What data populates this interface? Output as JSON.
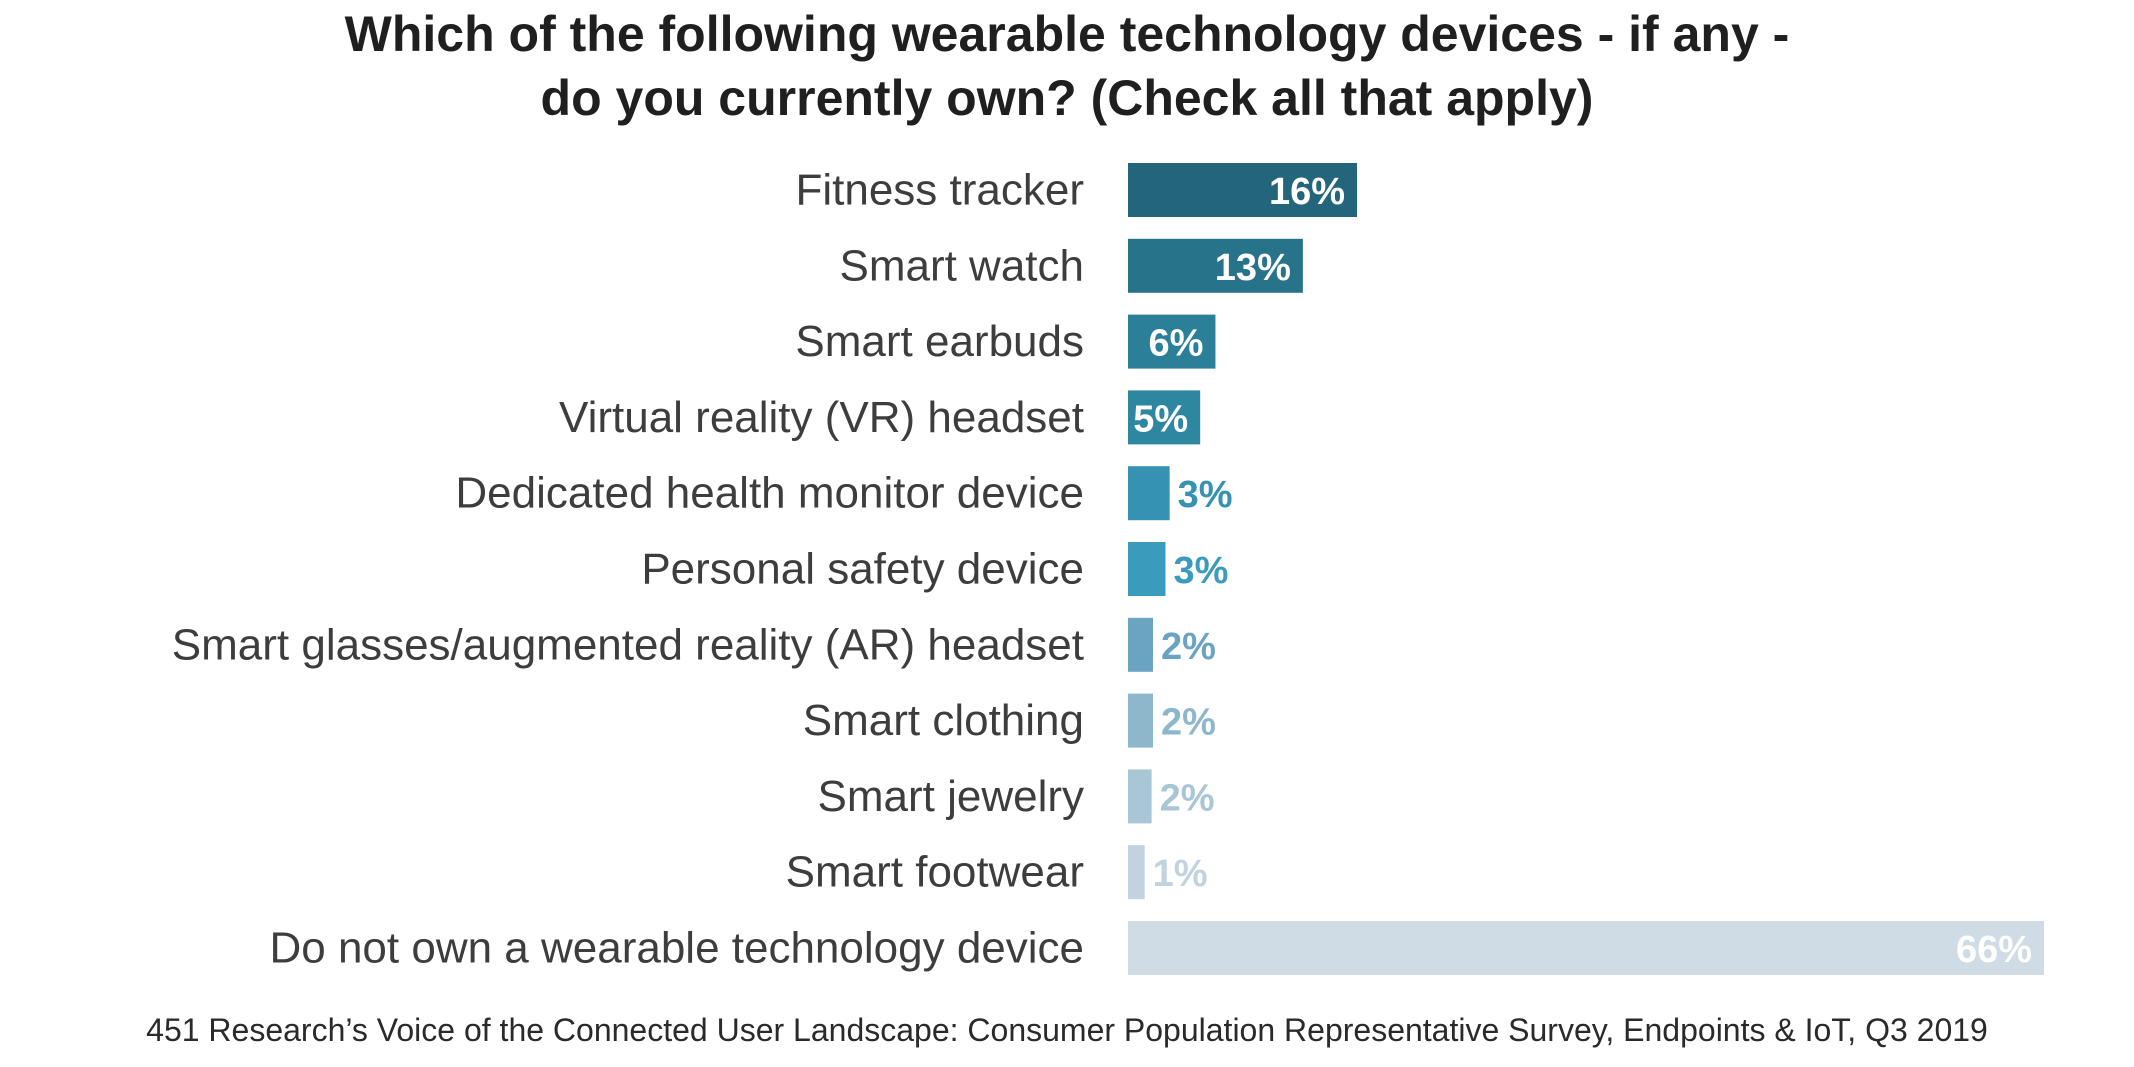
{
  "chart_data": {
    "type": "bar",
    "orientation": "horizontal",
    "title_lines": [
      "Which of the following wearable technology devices - if any -",
      "do you currently own? (Check all that apply)"
    ],
    "xlabel": "",
    "ylabel": "",
    "xlim": [
      0,
      66
    ],
    "grid": false,
    "legend": "none",
    "categories": [
      "Fitness tracker",
      "Smart watch",
      "Smart earbuds",
      "Virtual reality (VR) headset",
      "Dedicated health monitor device",
      "Personal safety device",
      "Smart glasses/augmented reality (AR) headset",
      "Smart clothing",
      "Smart jewelry",
      "Smart footwear",
      "Do not own a wearable technology device"
    ],
    "values": [
      16.5,
      12.6,
      6.3,
      5.2,
      3.0,
      2.7,
      1.8,
      1.8,
      1.7,
      1.2,
      66
    ],
    "value_labels": [
      "16%",
      "13%",
      "6%",
      "5%",
      "3%",
      "3%",
      "2%",
      "2%",
      "2%",
      "1%",
      "66%"
    ],
    "bar_colors": [
      "#23667b",
      "#27738a",
      "#2b7f99",
      "#2e87a0",
      "#3592b0",
      "#3a9bbd",
      "#6aa4c2",
      "#8db7cb",
      "#a9c6d6",
      "#c0d3df",
      "#cfdce5"
    ],
    "label_inside": [
      true,
      true,
      true,
      true,
      false,
      false,
      false,
      false,
      false,
      false,
      true
    ]
  },
  "source": "451 Research’s Voice of the Connected User Landscape: Consumer Population Representative Survey, Endpoints & IoT, Q3 2019"
}
